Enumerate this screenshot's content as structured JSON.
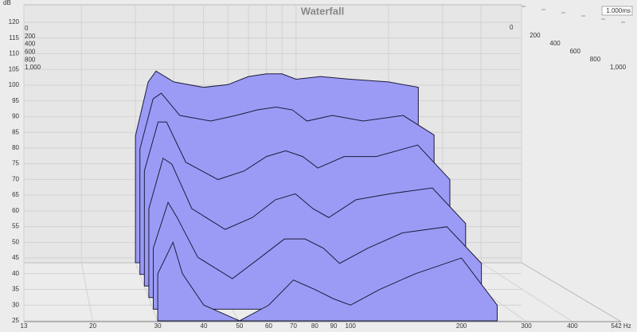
{
  "chart_data": {
    "type": "waterfall",
    "title": "Waterfall",
    "y_label": "dB",
    "time_cursor_label": "1.000ms",
    "x": [
      30,
      33,
      35,
      40,
      50,
      60,
      70,
      80,
      90,
      100,
      120,
      150,
      200,
      250
    ],
    "xlim": [
      13,
      542
    ],
    "xscale": "log",
    "xticks": [
      13,
      20,
      30,
      40,
      50,
      60,
      70,
      80,
      90,
      100,
      200,
      300,
      400,
      {
        "value": 542,
        "label": "542 Hz"
      }
    ],
    "ylim": [
      25,
      120
    ],
    "yticks": [
      25,
      30,
      35,
      40,
      45,
      50,
      55,
      60,
      65,
      70,
      75,
      80,
      85,
      90,
      95,
      100,
      105,
      110,
      115,
      120
    ],
    "zlim": [
      0,
      1000
    ],
    "zticks": [
      0,
      200,
      400,
      600,
      800,
      {
        "value": 1000,
        "label": "1,000"
      }
    ],
    "z": [
      0,
      200,
      400,
      600,
      800,
      1000
    ],
    "color": "#9b9bf6",
    "line_color": "#1c1c3c",
    "grid": true,
    "series": [
      {
        "values": [
          72,
          92,
          96,
          92,
          90,
          91,
          94,
          95,
          95,
          93,
          94,
          93,
          92,
          90
        ]
      },
      {
        "values": [
          70,
          88,
          90,
          82,
          80,
          82,
          84,
          85,
          84,
          80,
          82,
          80,
          82,
          75
        ]
      },
      {
        "values": [
          65,
          82,
          82,
          68,
          62,
          65,
          70,
          72,
          70,
          66,
          70,
          70,
          74,
          62
        ]
      },
      {
        "values": [
          55,
          72,
          70,
          55,
          48,
          52,
          58,
          60,
          55,
          52,
          58,
          60,
          62,
          50
        ]
      },
      {
        "values": [
          45,
          60,
          55,
          42,
          35,
          42,
          48,
          48,
          45,
          40,
          45,
          50,
          52,
          40
        ]
      },
      {
        "values": [
          40,
          50,
          40,
          30,
          25,
          30,
          38,
          35,
          32,
          30,
          35,
          40,
          45,
          30
        ]
      }
    ]
  }
}
